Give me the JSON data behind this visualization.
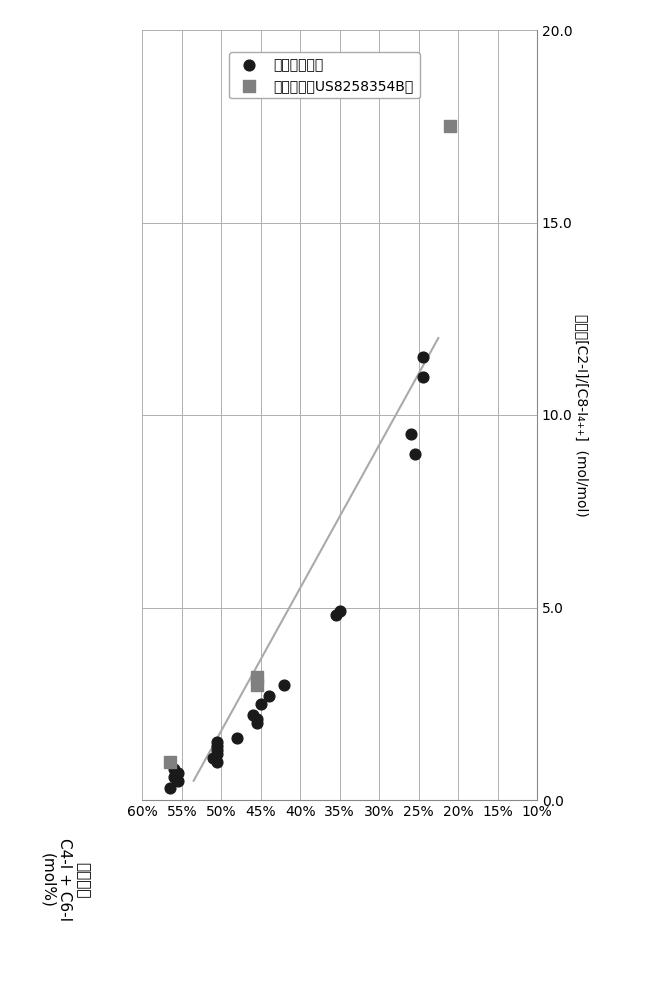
{
  "xmin": 0.1,
  "xmax": 0.6,
  "ymin": 0.0,
  "ymax": 20.0,
  "xtick_vals": [
    0.1,
    0.15,
    0.2,
    0.25,
    0.3,
    0.35,
    0.4,
    0.45,
    0.5,
    0.55,
    0.6
  ],
  "xtick_labels": [
    "10%",
    "15%",
    "20%",
    "25%",
    "30%",
    "35%",
    "40%",
    "45%",
    "50%",
    "55%",
    "60%"
  ],
  "ytick_vals": [
    0.0,
    5.0,
    10.0,
    15.0,
    20.0
  ],
  "ytick_labels": [
    "0.0",
    "5.0",
    "10.0",
    "15.0",
    "20.0"
  ],
  "circle_points_x": [
    0.565,
    0.555,
    0.56,
    0.555,
    0.56,
    0.505,
    0.51,
    0.505,
    0.505,
    0.505,
    0.505,
    0.48,
    0.455,
    0.455,
    0.46,
    0.45,
    0.44,
    0.42,
    0.355,
    0.35,
    0.255,
    0.26,
    0.245,
    0.245
  ],
  "circle_points_y": [
    0.3,
    0.5,
    0.6,
    0.7,
    0.8,
    1.0,
    1.1,
    1.2,
    1.3,
    1.4,
    1.5,
    1.6,
    2.0,
    2.1,
    2.2,
    2.5,
    2.7,
    3.0,
    4.8,
    4.9,
    9.0,
    9.5,
    11.0,
    11.5
  ],
  "square_points_x": [
    0.565,
    0.455,
    0.455,
    0.21
  ],
  "square_points_y": [
    1.0,
    3.0,
    3.2,
    17.5
  ],
  "trendline_x": [
    0.535,
    0.225
  ],
  "trendline_y": [
    0.5,
    12.0
  ],
  "legend_circle_label": "当前研究数据",
  "legend_square_label": "现有技术（US8258354B）",
  "ylabel_top": "进料比[C2-I]/[C8-I₄₊₊]  (mol/mol)",
  "xlabel_bottom": "选择性：\nC4-I + C6-I\n(mol%)",
  "background_color": "#ffffff",
  "grid_color": "#b0b0b0",
  "point_color_circle": "#1a1a1a",
  "point_color_square": "#808080",
  "trendline_color": "#aaaaaa",
  "spine_color": "#888888"
}
